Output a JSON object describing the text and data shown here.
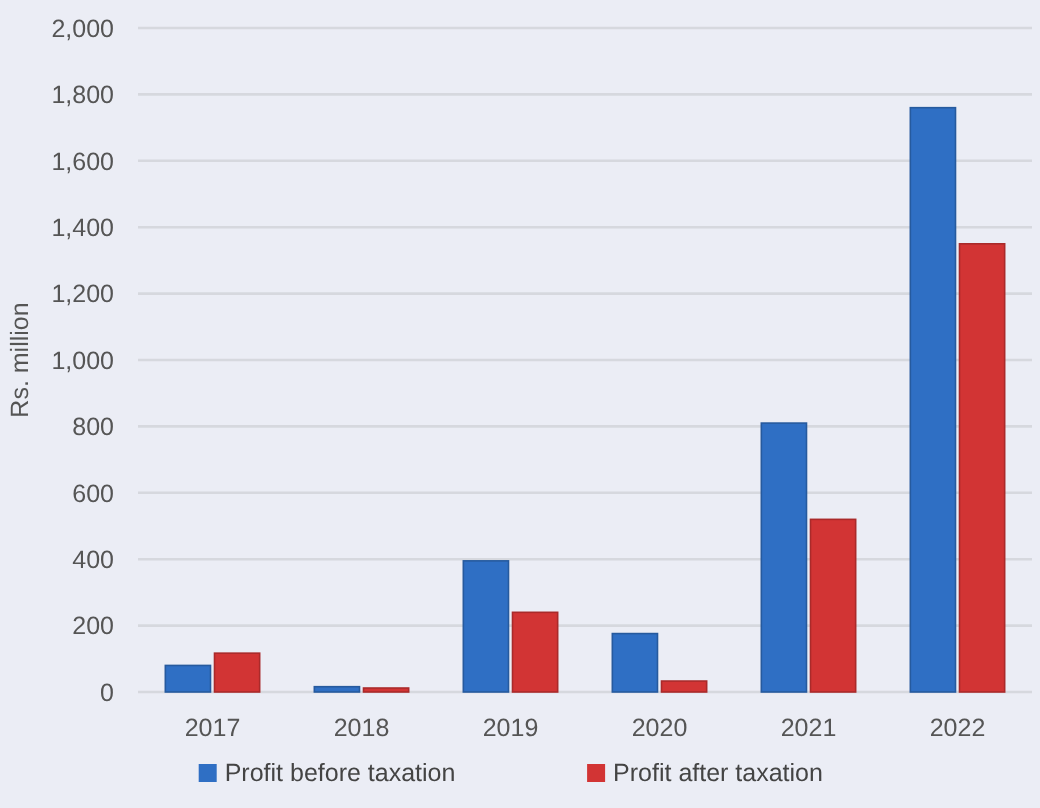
{
  "chart_data": {
    "type": "bar",
    "ylabel": "Rs. million",
    "categories": [
      "2017",
      "2018",
      "2019",
      "2020",
      "2021",
      "2022"
    ],
    "series": [
      {
        "name": "Profit before taxation",
        "color": "#2f6fc4",
        "values": [
          80,
          16,
          395,
          176,
          810,
          1760
        ]
      },
      {
        "name": "Profit after taxation",
        "color": "#d23434",
        "values": [
          117,
          12,
          240,
          33,
          520,
          1350
        ]
      }
    ],
    "ylim": [
      0,
      2000
    ],
    "yticks": [
      {
        "value": 0,
        "label": "0"
      },
      {
        "value": 200,
        "label": "200"
      },
      {
        "value": 400,
        "label": "400"
      },
      {
        "value": 600,
        "label": "600"
      },
      {
        "value": 800,
        "label": "800"
      },
      {
        "value": 1000,
        "label": "1,000"
      },
      {
        "value": 1200,
        "label": "1,200"
      },
      {
        "value": 1400,
        "label": "1,400"
      },
      {
        "value": 1600,
        "label": "1,600"
      },
      {
        "value": 1800,
        "label": "1,800"
      },
      {
        "value": 2000,
        "label": "2,000"
      }
    ],
    "grid": "y",
    "legend": "bottom"
  }
}
